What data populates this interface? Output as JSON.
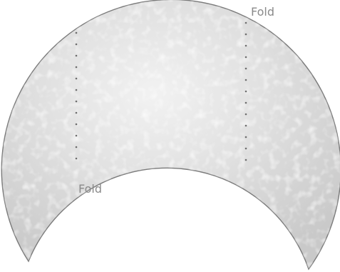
{
  "labels": {
    "fold_top": "Fold",
    "fold_bottom": "Fold"
  },
  "colors": {
    "background": "#ffffff",
    "crescent_fill": "#d4d4d4",
    "crescent_outline": "#7a7a7a",
    "fold_line": "#6e6e6e",
    "label_text": "#8a8a8a"
  }
}
